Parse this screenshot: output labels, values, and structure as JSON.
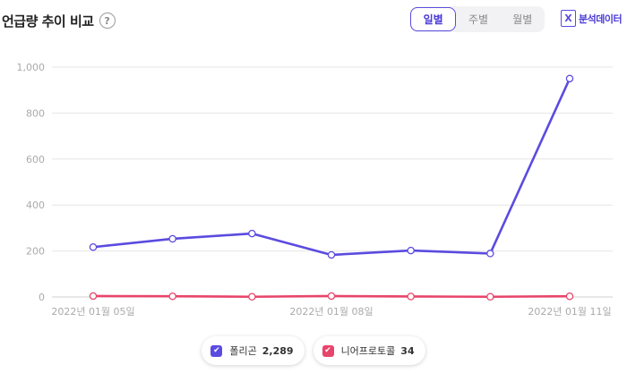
{
  "header": {
    "title": "언급량 추이 비교",
    "help_icon": "question-circle-icon",
    "period_tabs": [
      {
        "label": "일별",
        "active": true
      },
      {
        "label": "주별",
        "active": false
      },
      {
        "label": "월별",
        "active": false
      }
    ],
    "analysis_label": "분석데이터",
    "analysis_icon": "excel-file-icon"
  },
  "legend": [
    {
      "name": "폴리곤",
      "count": "2,289",
      "color": "#5b4be0"
    },
    {
      "name": "니어프로토콜",
      "count": "34",
      "color": "#e8456b"
    }
  ],
  "chart_data": {
    "type": "line",
    "title": "",
    "xlabel": "",
    "ylabel": "",
    "x_tick_labels": [
      "2022년 01월 05일",
      "2022년 01월 08일",
      "2022년 01월 11일"
    ],
    "y_ticks": [
      "0",
      "200",
      "400",
      "600",
      "800",
      "1,000"
    ],
    "ylim": [
      0,
      1000
    ],
    "grid": true,
    "series": [
      {
        "name": "폴리곤",
        "color": "#5b4be0",
        "values": [
          217,
          253,
          276,
          183,
          202,
          189,
          950
        ]
      },
      {
        "name": "니어프로토콜",
        "color": "#e8456b",
        "values": [
          4,
          3,
          1,
          4,
          2,
          1,
          3
        ]
      }
    ]
  }
}
